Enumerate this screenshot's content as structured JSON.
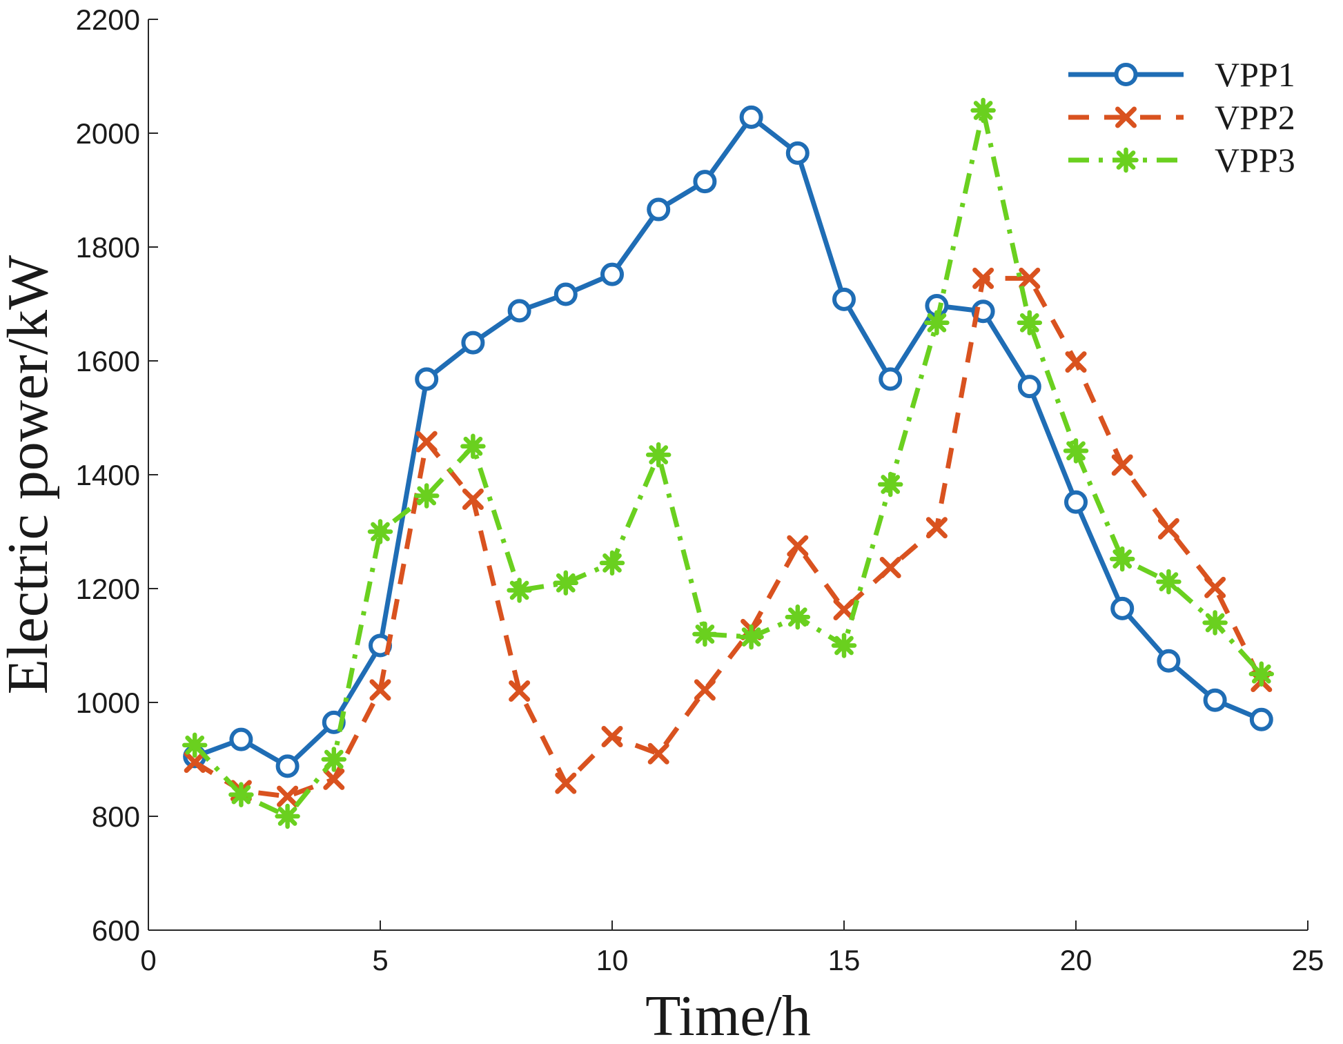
{
  "chart_data": {
    "type": "line",
    "title": "",
    "xlabel": "Time/h",
    "ylabel": "Electric power/kW",
    "xlim": [
      0,
      25
    ],
    "ylim": [
      600,
      2200
    ],
    "xticks": [
      0,
      5,
      10,
      15,
      20,
      25
    ],
    "yticks": [
      600,
      800,
      1000,
      1200,
      1400,
      1600,
      1800,
      2000,
      2200
    ],
    "grid": false,
    "legend_position": "top-right",
    "x": [
      1,
      2,
      3,
      4,
      5,
      6,
      7,
      8,
      9,
      10,
      11,
      12,
      13,
      14,
      15,
      16,
      17,
      18,
      19,
      20,
      21,
      22,
      23,
      24
    ],
    "series": [
      {
        "name": "VPP1",
        "color": "#1F6DB5",
        "line_style": "solid",
        "marker": "circle",
        "values": [
          905,
          935,
          888,
          965,
          1100,
          1568,
          1632,
          1688,
          1717,
          1752,
          1866,
          1915,
          2028,
          1965,
          1708,
          1568,
          1697,
          1687,
          1555,
          1352,
          1165,
          1073,
          1004,
          970
        ]
      },
      {
        "name": "VPP2",
        "color": "#D9521F",
        "line_style": "dashed",
        "marker": "x",
        "values": [
          895,
          845,
          835,
          865,
          1022,
          1458,
          1357,
          1020,
          858,
          940,
          910,
          1022,
          1128,
          1275,
          1163,
          1237,
          1307,
          1745,
          1745,
          1598,
          1417,
          1305,
          1202,
          1037
        ]
      },
      {
        "name": "VPP3",
        "color": "#6AD01F",
        "line_style": "dashdot",
        "marker": "asterisk",
        "values": [
          925,
          838,
          800,
          900,
          1300,
          1363,
          1450,
          1197,
          1210,
          1245,
          1435,
          1120,
          1115,
          1150,
          1100,
          1383,
          1667,
          2040,
          1667,
          1442,
          1252,
          1212,
          1140,
          1050
        ]
      }
    ]
  }
}
